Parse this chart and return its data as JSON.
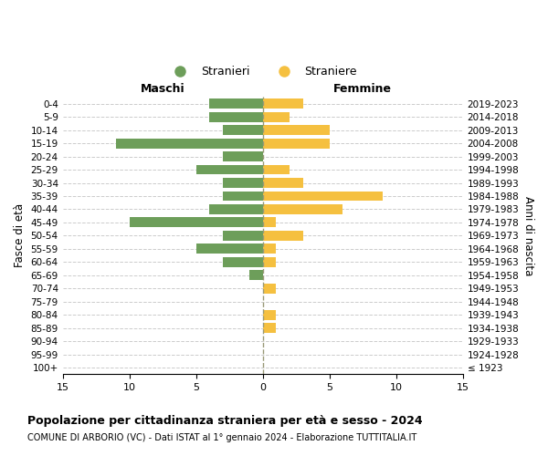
{
  "age_groups": [
    "100+",
    "95-99",
    "90-94",
    "85-89",
    "80-84",
    "75-79",
    "70-74",
    "65-69",
    "60-64",
    "55-59",
    "50-54",
    "45-49",
    "40-44",
    "35-39",
    "30-34",
    "25-29",
    "20-24",
    "15-19",
    "10-14",
    "5-9",
    "0-4"
  ],
  "birth_years": [
    "≤ 1923",
    "1924-1928",
    "1929-1933",
    "1934-1938",
    "1939-1943",
    "1944-1948",
    "1949-1953",
    "1954-1958",
    "1959-1963",
    "1964-1968",
    "1969-1973",
    "1974-1978",
    "1979-1983",
    "1984-1988",
    "1989-1993",
    "1994-1998",
    "1999-2003",
    "2004-2008",
    "2009-2013",
    "2014-2018",
    "2019-2023"
  ],
  "males": [
    0,
    0,
    0,
    0,
    0,
    0,
    0,
    1,
    3,
    5,
    3,
    10,
    4,
    3,
    3,
    5,
    3,
    11,
    3,
    4,
    4
  ],
  "females": [
    0,
    0,
    0,
    1,
    1,
    0,
    1,
    0,
    1,
    1,
    3,
    1,
    6,
    9,
    3,
    2,
    0,
    5,
    5,
    2,
    3
  ],
  "male_color": "#6d9e5a",
  "female_color": "#f5c040",
  "background_color": "#ffffff",
  "grid_color": "#cccccc",
  "title": "Popolazione per cittadinanza straniera per età e sesso - 2024",
  "subtitle": "COMUNE DI ARBORIO (VC) - Dati ISTAT al 1° gennaio 2024 - Elaborazione TUTTITALIA.IT",
  "xlabel_left": "Maschi",
  "xlabel_right": "Femmine",
  "ylabel_left": "Fasce di età",
  "ylabel_right": "Anni di nascita",
  "legend_males": "Stranieri",
  "legend_females": "Straniere",
  "xlim": 15
}
